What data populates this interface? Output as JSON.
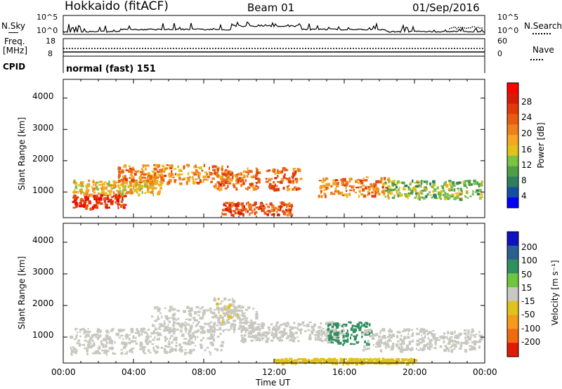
{
  "header": {
    "station": "Hokkaido (fitACF)",
    "beam": "Beam 01",
    "date": "01/Sep/2016"
  },
  "nsky_panel": {
    "left_label": "N.Sky",
    "right_label": "N.Search",
    "yticks_left": [
      "10^5",
      "10^0"
    ],
    "yticks_right": [
      "10^5",
      "10^0"
    ]
  },
  "freq_panel": {
    "left_label_1": "Freq.",
    "left_label_2": "[MHz]",
    "yticks_left": [
      "18",
      "8"
    ],
    "yticks_right": [
      "60",
      "0"
    ],
    "right_label": "Nave"
  },
  "cpid_panel": {
    "label": "CPID",
    "text": "normal (fast) 151"
  },
  "time_axis": {
    "label": "Time UT",
    "ticks": [
      "00:00",
      "04:00",
      "08:00",
      "12:00",
      "16:00",
      "20:00",
      "00:00"
    ]
  },
  "chart_data": [
    {
      "type": "heatmap",
      "xlabel": "Time UT",
      "ylabel": "Slant Range [km]",
      "x_ticks": [
        "00:00",
        "04:00",
        "08:00",
        "12:00",
        "16:00",
        "20:00",
        "00:00"
      ],
      "y_ticks": [
        "1000",
        "2000",
        "3000",
        "4000"
      ],
      "ylim": [
        180,
        4600
      ],
      "colorbar": {
        "label": "Power [dB]",
        "ticks": [
          "4",
          "8",
          "12",
          "16",
          "20",
          "24",
          "28"
        ],
        "range": [
          0,
          32
        ],
        "colors": [
          "#0000ff",
          "#1450a0",
          "#2f7f5f",
          "#4e9f47",
          "#7cc243",
          "#e0c21a",
          "#f5a623",
          "#f07f1e",
          "#e85c12",
          "#e03a0a",
          "#d81a06",
          "#ff0000"
        ]
      },
      "bands": [
        {
          "t0": 0.5,
          "t1": 3.5,
          "r0": 500,
          "r1": 950,
          "value": 26
        },
        {
          "t0": 0.5,
          "t1": 5.5,
          "r0": 950,
          "r1": 1400,
          "value": 16
        },
        {
          "t0": 3.0,
          "t1": 9.5,
          "r0": 1300,
          "r1": 1900,
          "value": 20
        },
        {
          "t0": 8.5,
          "t1": 13.5,
          "r0": 1100,
          "r1": 1800,
          "value": 22
        },
        {
          "t0": 9.0,
          "t1": 13.0,
          "r0": 300,
          "r1": 700,
          "value": 24
        },
        {
          "t0": 14.5,
          "t1": 18.5,
          "r0": 900,
          "r1": 1500,
          "value": 20
        },
        {
          "t0": 18.0,
          "t1": 23.8,
          "r0": 800,
          "r1": 1400,
          "value": 12
        }
      ]
    },
    {
      "type": "heatmap",
      "xlabel": "Time UT",
      "ylabel": "Slant Range [km]",
      "x_ticks": [
        "00:00",
        "04:00",
        "08:00",
        "12:00",
        "16:00",
        "20:00",
        "00:00"
      ],
      "y_ticks": [
        "1000",
        "2000",
        "3000",
        "4000"
      ],
      "ylim": [
        180,
        4600
      ],
      "colorbar": {
        "label": "Velocity [m s⁻¹]",
        "ticks": [
          "200",
          "100",
          "50",
          "15",
          "-15",
          "-50",
          "-100",
          "-200"
        ],
        "colors": [
          "#1010c0",
          "#2a5f8f",
          "#2f8f5f",
          "#6fc53f",
          "#c8c8c0",
          "#e0c21a",
          "#f59a1a",
          "#f06a10",
          "#e01a06"
        ]
      },
      "bands": [
        {
          "t0": 0.3,
          "t1": 9.0,
          "r0": 500,
          "r1": 1300,
          "value": 0
        },
        {
          "t0": 5.0,
          "t1": 11.0,
          "r0": 1200,
          "r1": 2000,
          "value": 0
        },
        {
          "t0": 8.5,
          "t1": 10.0,
          "r0": 1500,
          "r1": 2300,
          "value": -30
        },
        {
          "t0": 10.0,
          "t1": 16.0,
          "r0": 900,
          "r1": 1500,
          "value": 0
        },
        {
          "t0": 15.0,
          "t1": 17.5,
          "r0": 800,
          "r1": 1500,
          "value": 40
        },
        {
          "t0": 17.0,
          "t1": 23.8,
          "r0": 600,
          "r1": 1300,
          "value": 0
        },
        {
          "t0": 12.0,
          "t1": 20.0,
          "r0": 200,
          "r1": 350,
          "value": -40
        }
      ]
    }
  ]
}
